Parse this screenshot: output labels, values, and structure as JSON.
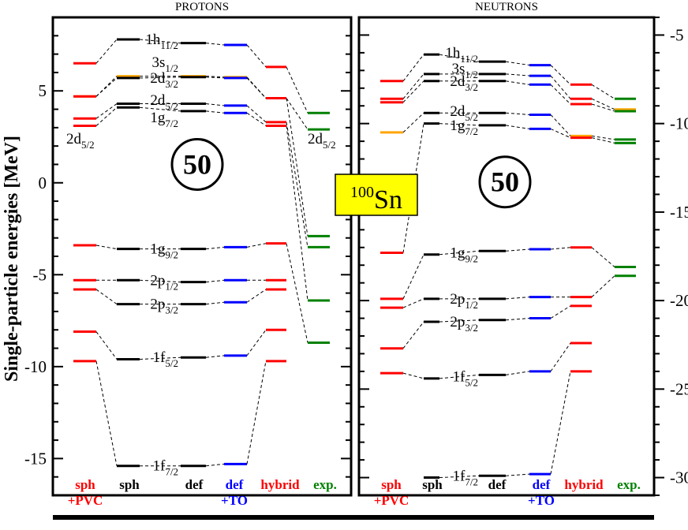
{
  "chart_data": {
    "type": "level-scheme",
    "title_box": {
      "mass": "100",
      "symbol": "Sn"
    },
    "ylabel": "Single-particle energies [MeV]",
    "magic_number": "50",
    "column_labels": [
      {
        "lines": [
          "sph",
          "+PVC"
        ],
        "color": "#ff0000"
      },
      {
        "lines": [
          "sph"
        ],
        "color": "#000000"
      },
      {
        "lines": [
          "def"
        ],
        "color": "#000000"
      },
      {
        "lines": [
          "def",
          "+TO"
        ],
        "color": "#0000ff"
      },
      {
        "lines": [
          "hybrid"
        ],
        "color": "#ff0000"
      },
      {
        "lines": [
          "exp."
        ],
        "color": "#008000"
      }
    ],
    "colors": {
      "red": "#ff0000",
      "black": "#000000",
      "blue": "#0000ff",
      "green": "#008000",
      "orange": "#ffa500"
    },
    "panels": [
      {
        "name": "protons",
        "title": "PROTONS",
        "ylim": [
          -17,
          9
        ],
        "yticks": [
          -15,
          -10,
          -5,
          0,
          5
        ],
        "yticklabels": [
          "-15",
          "-10",
          "-5",
          "0",
          "5"
        ],
        "tick_side": "left",
        "magic_at": 1.0,
        "columns": [
          {
            "name": "sph+PVC",
            "color": "red",
            "levels": [
              {
                "e": 6.5
              },
              {
                "e": 4.7,
                "color": "orange"
              },
              {
                "e": 4.7
              },
              {
                "e": 3.5
              },
              {
                "e": 3.1
              },
              {
                "e": -3.4
              },
              {
                "e": -5.3
              },
              {
                "e": -5.8
              },
              {
                "e": -8.1
              },
              {
                "e": -9.7
              }
            ]
          },
          {
            "name": "sph",
            "color": "black",
            "levels": [
              {
                "e": 7.8
              },
              {
                "e": 5.8,
                "color": "orange"
              },
              {
                "e": 5.7
              },
              {
                "e": 4.3
              },
              {
                "e": 4.1
              },
              {
                "e": -3.6
              },
              {
                "e": -5.3
              },
              {
                "e": -6.6
              },
              {
                "e": -9.6
              },
              {
                "e": -15.4
              }
            ]
          },
          {
            "name": "def",
            "color": "black",
            "levels": [
              {
                "e": 7.6
              },
              {
                "e": 5.8,
                "color": "orange"
              },
              {
                "e": 5.75
              },
              {
                "e": 4.3
              },
              {
                "e": 3.9
              },
              {
                "e": -3.6
              },
              {
                "e": -5.4
              },
              {
                "e": -6.6
              },
              {
                "e": -9.5
              },
              {
                "e": -15.4
              }
            ]
          },
          {
            "name": "def+TO",
            "color": "blue",
            "levels": [
              {
                "e": 7.5
              },
              {
                "e": 5.75,
                "color": "orange"
              },
              {
                "e": 5.7
              },
              {
                "e": 4.2
              },
              {
                "e": 3.8
              },
              {
                "e": -3.5
              },
              {
                "e": -5.3
              },
              {
                "e": -6.5
              },
              {
                "e": -9.4
              },
              {
                "e": -15.3
              }
            ]
          },
          {
            "name": "hybrid",
            "color": "red",
            "levels": [
              {
                "e": 6.3
              },
              {
                "e": 4.6,
                "color": "orange"
              },
              {
                "e": 4.6
              },
              {
                "e": 3.3
              },
              {
                "e": 3.1
              },
              {
                "e": -3.3
              },
              {
                "e": -5.3
              },
              {
                "e": -5.8
              },
              {
                "e": -8.0
              },
              {
                "e": -9.7
              }
            ]
          },
          {
            "name": "exp.",
            "color": "green",
            "levels": [
              {
                "e": 3.8
              },
              {
                "e": 2.9
              },
              {
                "e": -2.9
              },
              {
                "e": -3.5
              },
              {
                "e": -6.4
              },
              {
                "e": -8.7
              }
            ]
          }
        ],
        "labels": [
          {
            "pos": "mid",
            "base": "1h",
            "sub": "11/2",
            "e": 7.8
          },
          {
            "pos": "mid",
            "base": "3s",
            "sub": "1/2",
            "e": 6.55
          },
          {
            "pos": "mid",
            "base": "2d",
            "sub": "3/2",
            "e": 5.7
          },
          {
            "pos": "mid",
            "base": "2d",
            "sub": "5/2",
            "e": 4.5
          },
          {
            "pos": "mid",
            "base": "1g",
            "sub": "7/2",
            "e": 3.55
          },
          {
            "pos": "mid",
            "base": "1g",
            "sub": "9/2",
            "e": -3.6
          },
          {
            "pos": "mid",
            "base": "2p",
            "sub": "1/2",
            "e": -5.3
          },
          {
            "pos": "mid",
            "base": "2p",
            "sub": "3/2",
            "e": -6.6
          },
          {
            "pos": "mid",
            "base": "1f",
            "sub": "5/2",
            "e": -9.5
          },
          {
            "pos": "mid",
            "base": "1f",
            "sub": "7/2",
            "e": -15.4
          },
          {
            "pos": "left",
            "base": "2d",
            "sub": "5/2",
            "e": 2.4
          },
          {
            "pos": "right",
            "base": "2d",
            "sub": "5/2",
            "e": 2.4
          }
        ]
      },
      {
        "name": "neutrons",
        "title": "NEUTRONS",
        "ylim": [
          -31,
          -4
        ],
        "yticks": [
          -30,
          -25,
          -20,
          -15,
          -10,
          -5
        ],
        "yticklabels": [
          "-30",
          "-25",
          "-20",
          "-15",
          "-10",
          "-5"
        ],
        "tick_side": "right",
        "magic_at": -13.3,
        "columns": [
          {
            "name": "sph+PVC",
            "color": "red",
            "levels": [
              {
                "e": -7.6
              },
              {
                "e": -8.6
              },
              {
                "e": -8.8
              },
              {
                "e": -10.5,
                "color": "orange"
              },
              {
                "e": -17.3
              },
              {
                "e": -19.9
              },
              {
                "e": -20.4
              },
              {
                "e": -22.7
              },
              {
                "e": -24.1
              }
            ]
          },
          {
            "name": "sph",
            "color": "black",
            "levels": [
              {
                "e": -6.1
              },
              {
                "e": -7.2
              },
              {
                "e": -7.6
              },
              {
                "e": -9.4
              },
              {
                "e": -10.0
              },
              {
                "e": -17.4
              },
              {
                "e": -19.9
              },
              {
                "e": -21.2
              },
              {
                "e": -24.4
              },
              {
                "e": -30.0
              }
            ]
          },
          {
            "name": "def",
            "color": "black",
            "levels": [
              {
                "e": -6.5
              },
              {
                "e": -7.2
              },
              {
                "e": -7.6
              },
              {
                "e": -9.4
              },
              {
                "e": -10.1
              },
              {
                "e": -17.2
              },
              {
                "e": -19.9
              },
              {
                "e": -21.1
              },
              {
                "e": -24.2
              },
              {
                "e": -29.9
              }
            ]
          },
          {
            "name": "def+TO",
            "color": "blue",
            "levels": [
              {
                "e": -6.7
              },
              {
                "e": -7.3
              },
              {
                "e": -7.8
              },
              {
                "e": -9.5
              },
              {
                "e": -10.3
              },
              {
                "e": -17.1
              },
              {
                "e": -19.8
              },
              {
                "e": -21.0
              },
              {
                "e": -24.0
              },
              {
                "e": -29.8
              }
            ]
          },
          {
            "name": "hybrid",
            "color": "red",
            "levels": [
              {
                "e": -7.8
              },
              {
                "e": -8.6
              },
              {
                "e": -8.9
              },
              {
                "e": -10.7,
                "color": "orange"
              },
              {
                "e": -10.8
              },
              {
                "e": -17.0
              },
              {
                "e": -19.8
              },
              {
                "e": -20.3
              },
              {
                "e": -22.4
              },
              {
                "e": -24.0
              }
            ]
          },
          {
            "name": "exp.",
            "color": "green",
            "levels": [
              {
                "e": -8.6
              },
              {
                "e": -9.2,
                "color": "orange"
              },
              {
                "e": -9.3
              },
              {
                "e": -10.9
              },
              {
                "e": -11.1
              },
              {
                "e": -18.1
              },
              {
                "e": -18.6
              }
            ]
          }
        ],
        "labels": [
          {
            "pos": "mid",
            "base": "1h",
            "sub": "11/2",
            "e": -6.0
          },
          {
            "pos": "mid",
            "base": "3s",
            "sub": "1/2",
            "e": -6.9
          },
          {
            "pos": "mid",
            "base": "2d",
            "sub": "3/2",
            "e": -7.6
          },
          {
            "pos": "mid",
            "base": "2d",
            "sub": "5/2",
            "e": -9.3
          },
          {
            "pos": "mid",
            "base": "1g",
            "sub": "7/2",
            "e": -10.1
          },
          {
            "pos": "mid",
            "base": "1g",
            "sub": "9/2",
            "e": -17.3
          },
          {
            "pos": "mid",
            "base": "2p",
            "sub": "1/2",
            "e": -19.9
          },
          {
            "pos": "mid",
            "base": "2p",
            "sub": "3/2",
            "e": -21.2
          },
          {
            "pos": "mid",
            "base": "1f",
            "sub": "5/2",
            "e": -24.3
          },
          {
            "pos": "mid",
            "base": "1f",
            "sub": "7/2",
            "e": -29.9
          }
        ]
      }
    ]
  }
}
